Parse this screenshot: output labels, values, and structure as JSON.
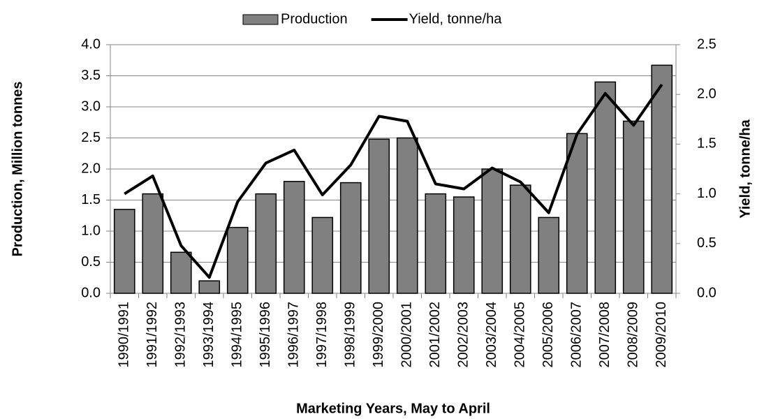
{
  "chart_data": {
    "type": "bar",
    "xlabel": "Marketing Years, May to April",
    "ylabel": "Production, Million  tonnes",
    "y2label": "Yield, tonne/ha",
    "categories": [
      "1990/1991",
      "1991/1992",
      "1992/1993",
      "1993/1994",
      "1994/1995",
      "1995/1996",
      "1996/1997",
      "1997/1998",
      "1998/1999",
      "1999/2000",
      "2000/2001",
      "2001/2002",
      "2002/2003",
      "2003/2004",
      "2004/2005",
      "2005/2006",
      "2006/2007",
      "2007/2008",
      "2008/2009",
      "2009/2010"
    ],
    "series": [
      {
        "name": "Production",
        "type": "bar",
        "color": "#808080",
        "values": [
          1.35,
          1.6,
          0.66,
          0.2,
          1.06,
          1.6,
          1.8,
          1.22,
          1.78,
          2.48,
          2.5,
          1.6,
          1.55,
          2.0,
          1.74,
          1.22,
          2.57,
          3.4,
          2.77,
          3.67
        ]
      },
      {
        "name": "Yield, tonne/ha",
        "type": "line",
        "axis": "y2",
        "color": "#000000",
        "values": [
          1.0,
          1.18,
          0.48,
          0.16,
          0.92,
          1.31,
          1.44,
          0.99,
          1.29,
          1.78,
          1.73,
          1.1,
          1.05,
          1.26,
          1.12,
          0.81,
          1.6,
          2.01,
          1.69,
          2.1
        ]
      }
    ],
    "ylim": [
      0,
      4
    ],
    "yticks": [
      {
        "value": 0,
        "label": "0.0"
      },
      {
        "value": 0.5,
        "label": "0.5"
      },
      {
        "value": 1,
        "label": "1.0"
      },
      {
        "value": 1.5,
        "label": "1.5"
      },
      {
        "value": 2,
        "label": "2.0"
      },
      {
        "value": 2.5,
        "label": "2.5"
      },
      {
        "value": 3,
        "label": "3.0"
      },
      {
        "value": 3.5,
        "label": "3.5"
      },
      {
        "value": 4,
        "label": "4.0"
      }
    ],
    "y2lim": [
      0,
      2.5
    ],
    "y2ticks": [
      {
        "value": 0,
        "label": "0.0"
      },
      {
        "value": 0.5,
        "label": "0.5"
      },
      {
        "value": 1,
        "label": "1.0"
      },
      {
        "value": 1.5,
        "label": "1.5"
      },
      {
        "value": 2,
        "label": "2.0"
      },
      {
        "value": 2.5,
        "label": "2.5"
      }
    ],
    "grid": true,
    "legend": "top"
  }
}
